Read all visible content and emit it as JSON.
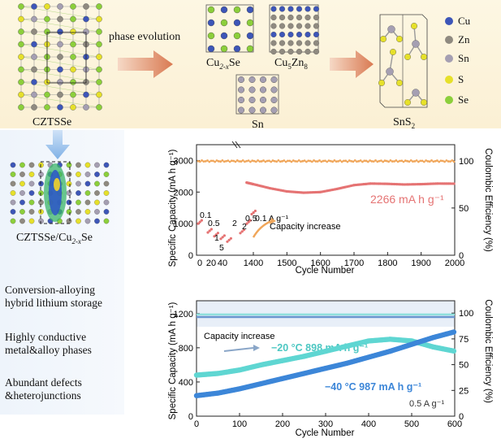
{
  "top": {
    "czts_label": "CZTSSe",
    "phase_evolution": "phase evolution",
    "cu2xse_label": "Cu",
    "cu2xse_sub": "2-x",
    "cu2xse_tail": "Se",
    "cu5zn8_label": "Cu",
    "cu5zn8_sub1": "5",
    "cu5zn8_mid": "Zn",
    "cu5zn8_sub2": "8",
    "sn_label": "Sn",
    "sns2_label": "SnS",
    "sns2_sub": "2",
    "legend": [
      {
        "name": "Cu",
        "color": "#3d56b8"
      },
      {
        "name": "Zn",
        "color": "#8f8a80"
      },
      {
        "name": "Sn",
        "color": "#9a93a8"
      },
      {
        "name": "S",
        "color": "#e6e02a"
      },
      {
        "name": "Se",
        "color": "#8ccf3b"
      }
    ]
  },
  "left": {
    "hetero_label": "CZTSSe/Cu",
    "hetero_sub": "2-x",
    "hetero_tail": "Se",
    "features": [
      {
        "l1": "Conversion-alloying",
        "l2": "hybrid lithium storage"
      },
      {
        "l1": "Highly conductive",
        "l2": "metal&alloy phases"
      },
      {
        "l1": "Abundant defects",
        "l2": "&heterojunctions"
      }
    ]
  },
  "chart_data": [
    {
      "type": "scatter",
      "xlabel": "Cycle Number",
      "ylabel": "Specific Capacity (mA h g⁻¹)",
      "y2label": "Coulombic Efficiency (%)",
      "x_ticks_left": [
        "0",
        "20",
        "40"
      ],
      "x_ticks_right": [
        1400,
        1500,
        1600,
        1700,
        1800,
        1900,
        2000
      ],
      "y_ticks": [
        0,
        1000,
        2000,
        3000
      ],
      "y2_ticks": [
        0,
        50,
        100
      ],
      "ylim": [
        0,
        3500
      ],
      "rate_labels": [
        "0.1",
        "0.5",
        "1",
        "2",
        "5",
        "2",
        "0.5",
        "0.1 A g⁻¹"
      ],
      "rate_segments": [
        {
          "rate": "0.1",
          "capacity": 1000
        },
        {
          "rate": "0.5",
          "capacity": 720
        },
        {
          "rate": "1",
          "capacity": 600
        },
        {
          "rate": "2",
          "capacity": 520
        },
        {
          "rate": "5",
          "capacity": 430
        },
        {
          "rate": "2",
          "capacity": 700
        },
        {
          "rate": "0.5",
          "capacity": 1000
        },
        {
          "rate": "0.1",
          "capacity": 1300
        }
      ],
      "annotation": "Capacity increase",
      "final_capacity": "2266 mA h g⁻¹",
      "series": [
        {
          "name": "capacity",
          "x": [
            1380,
            1400,
            1450,
            1500,
            1550,
            1600,
            1650,
            1700,
            1750,
            1800,
            1850,
            1900,
            1950,
            2000
          ],
          "values": [
            2300,
            2250,
            2120,
            2020,
            1980,
            2000,
            2100,
            2220,
            2270,
            2260,
            2240,
            2250,
            2270,
            2266
          ]
        },
        {
          "name": "coulombic efficiency",
          "values_percent": 99
        }
      ]
    },
    {
      "type": "scatter",
      "xlabel": "Cycle Number",
      "ylabel": "Specific Capacity (mA h g⁻¹)",
      "y2label": "Coulombic Efficiency (%)",
      "x_ticks": [
        0,
        100,
        200,
        300,
        400,
        500,
        600
      ],
      "y_ticks": [
        0,
        400,
        800,
        1200
      ],
      "y2_ticks": [
        0,
        25,
        50,
        75,
        100
      ],
      "xlim": [
        0,
        600
      ],
      "ylim": [
        0,
        1350
      ],
      "annotation": "Capacity increase",
      "rate_note": "0.5 A g⁻¹",
      "series": [
        {
          "name": "−20 °C",
          "label": "−20 °C   898 mA h g⁻¹",
          "color": "#5fd6d2",
          "x": [
            0,
            50,
            100,
            150,
            200,
            250,
            300,
            350,
            400,
            450,
            500,
            550,
            600
          ],
          "values": [
            480,
            500,
            540,
            600,
            650,
            700,
            760,
            820,
            880,
            900,
            880,
            810,
            760
          ]
        },
        {
          "name": "−40 °C",
          "label": "−40 °C   987 mA h g⁻¹",
          "color": "#3c86d8",
          "x": [
            0,
            50,
            100,
            150,
            200,
            250,
            300,
            350,
            400,
            450,
            500,
            550,
            600
          ],
          "values": [
            240,
            270,
            320,
            380,
            440,
            500,
            560,
            620,
            690,
            760,
            840,
            920,
            987
          ]
        },
        {
          "name": "CE",
          "color": "#7fa8d8",
          "values_percent": 99
        }
      ]
    }
  ]
}
